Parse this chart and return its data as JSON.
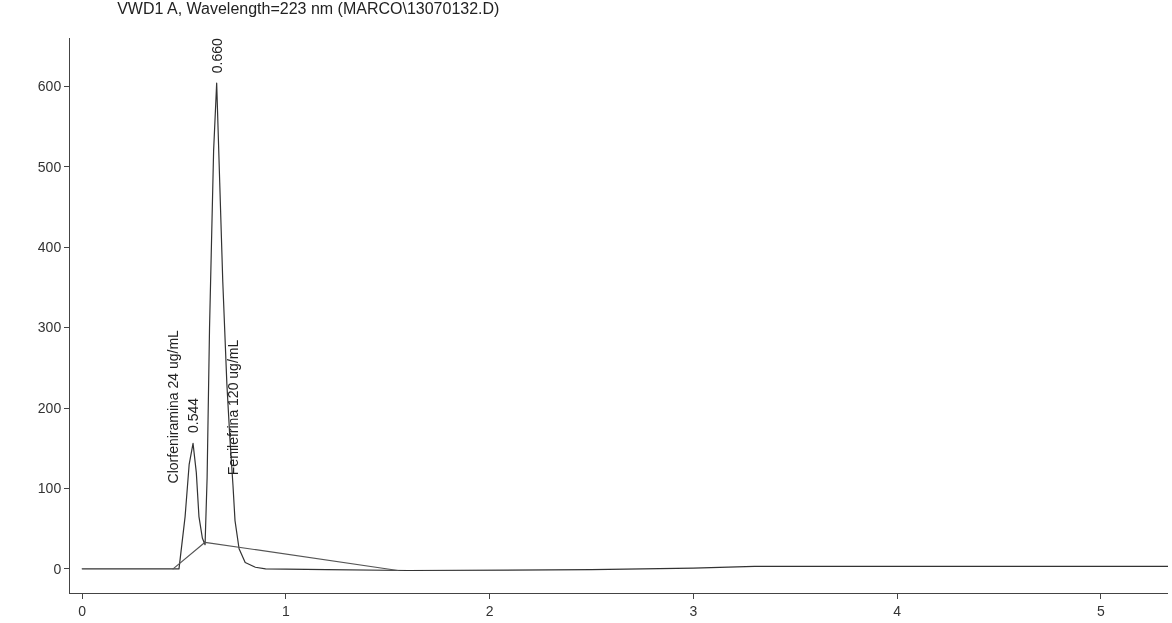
{
  "chart_data": {
    "type": "line",
    "title": "VWD1 A, Wavelength=223 nm (MARCO\\13070132.D)",
    "series": [
      {
        "color": "#333333",
        "x": [
          0,
          0.44,
          0.475,
          0.505,
          0.525,
          0.544,
          0.56,
          0.573,
          0.59,
          0.603,
          0.613,
          0.625,
          0.645,
          0.66,
          0.675,
          0.69,
          0.71,
          0.725,
          0.74,
          0.75,
          0.77,
          0.8,
          0.85,
          0.9,
          1.2,
          1.6,
          2.5,
          3.0,
          3.3,
          4.0,
          5.0,
          5.33
        ],
        "values": [
          0,
          0,
          0,
          65,
          130,
          156,
          120,
          65,
          38,
          30,
          113,
          300,
          520,
          604,
          480,
          357,
          230,
          162,
          104,
          60,
          25,
          8,
          2,
          0,
          -1,
          -2,
          -1,
          1,
          3,
          3,
          3,
          3
        ]
      },
      {
        "color": "#555555",
        "x": [
          0.446,
          0.603,
          1.55
        ],
        "values": [
          0,
          33,
          -2
        ]
      }
    ],
    "xlim": [
      -0.06,
      5.33
    ],
    "xticks": [
      0,
      1,
      2,
      3,
      4,
      5
    ],
    "ylim": [
      -30,
      660
    ],
    "yticks": [
      0,
      100,
      200,
      300,
      400,
      500,
      600
    ],
    "marker": "none",
    "line_style": "solid",
    "annotations": [
      {
        "text": "0.544",
        "x": 0.544,
        "y": 156
      },
      {
        "text": "Clorfeniramina 24 ug/mL",
        "x": 0.544,
        "y": 156
      },
      {
        "text": "0.660",
        "x": 0.66,
        "y": 604
      },
      {
        "text": "Fenilefrina 120 ug/mL",
        "x": 0.74,
        "y": 104
      }
    ]
  }
}
